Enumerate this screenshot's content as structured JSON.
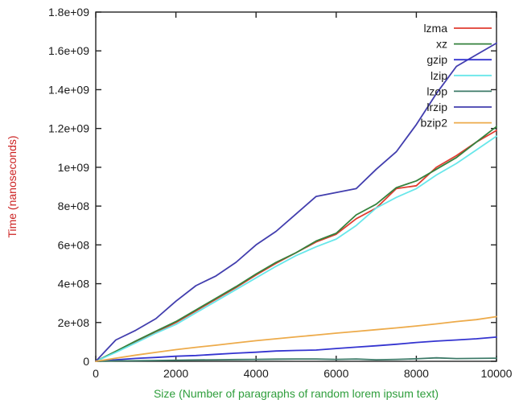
{
  "chart_data": {
    "type": "line",
    "title": "",
    "xlabel": "Size (Number of paragraphs of random lorem ipsum text)",
    "ylabel": "Time (nanoseconds)",
    "xlabel_color": "#2f9e3c",
    "ylabel_color": "#cc2222",
    "tick_text_color": "#1a1a1a",
    "border_color": "#222222",
    "background_color": "#ffffff",
    "grid": false,
    "legend_position": "inside-top-right",
    "xlim": [
      0,
      10000
    ],
    "ylim": [
      0,
      1800000000
    ],
    "xticks": [
      0,
      2000,
      4000,
      6000,
      8000,
      10000
    ],
    "xtick_labels": [
      "0",
      "2000",
      "4000",
      "6000",
      "8000",
      "10000"
    ],
    "yticks": [
      0,
      200000000.0,
      400000000.0,
      600000000.0,
      800000000.0,
      1000000000.0,
      1200000000.0,
      1400000000.0,
      1600000000.0,
      1800000000.0
    ],
    "ytick_labels": [
      "0",
      "2e+08",
      "4e+08",
      "6e+08",
      "8e+08",
      "1e+09",
      "1.2e+09",
      "1.4e+09",
      "1.6e+09",
      "1.8e+09"
    ],
    "x": [
      0,
      500,
      1000,
      1500,
      2000,
      2500,
      3000,
      3500,
      4000,
      4500,
      5000,
      5500,
      6000,
      6500,
      7000,
      7500,
      8000,
      8500,
      9000,
      9500,
      10000
    ],
    "series": [
      {
        "name": "lzma",
        "color": "#e03c30",
        "values": [
          0,
          50000000.0,
          100000000.0,
          150000000.0,
          200000000.0,
          260000000.0,
          320000000.0,
          380000000.0,
          445000000.0,
          505000000.0,
          560000000.0,
          615000000.0,
          655000000.0,
          735000000.0,
          790000000.0,
          890000000.0,
          905000000.0,
          1000000000.0,
          1060000000.0,
          1130000000.0,
          1190000000.0
        ]
      },
      {
        "name": "xz",
        "color": "#35823d",
        "values": [
          0,
          52000000.0,
          105000000.0,
          155000000.0,
          205000000.0,
          265000000.0,
          325000000.0,
          385000000.0,
          450000000.0,
          510000000.0,
          560000000.0,
          620000000.0,
          660000000.0,
          755000000.0,
          810000000.0,
          895000000.0,
          930000000.0,
          990000000.0,
          1050000000.0,
          1130000000.0,
          1210000000.0
        ]
      },
      {
        "name": "gzip",
        "color": "#3434d0",
        "values": [
          0,
          8000000.0,
          15000000.0,
          20000000.0,
          26000000.0,
          30000000.0,
          36000000.0,
          42000000.0,
          47000000.0,
          53000000.0,
          56000000.0,
          58000000.0,
          66000000.0,
          73000000.0,
          80000000.0,
          88000000.0,
          97000000.0,
          104000000.0,
          110000000.0,
          116000000.0,
          125000000.0
        ]
      },
      {
        "name": "lzip",
        "color": "#68e7ea",
        "values": [
          0,
          46000000.0,
          95000000.0,
          145000000.0,
          190000000.0,
          250000000.0,
          310000000.0,
          370000000.0,
          430000000.0,
          490000000.0,
          545000000.0,
          590000000.0,
          630000000.0,
          700000000.0,
          790000000.0,
          845000000.0,
          890000000.0,
          960000000.0,
          1020000000.0,
          1090000000.0,
          1160000000.0
        ]
      },
      {
        "name": "lzop",
        "color": "#3d7a68",
        "values": [
          0,
          2000000.0,
          3000000.0,
          4000000.0,
          6000000.0,
          7000000.0,
          8000000.0,
          9000000.0,
          10000000.0,
          11000000.0,
          12000000.0,
          12000000.0,
          10000000.0,
          12000000.0,
          8000000.0,
          10000000.0,
          13000000.0,
          18000000.0,
          14000000.0,
          15000000.0,
          16000000.0
        ]
      },
      {
        "name": "lrzip",
        "color": "#423eae",
        "values": [
          0,
          110000000.0,
          160000000.0,
          220000000.0,
          310000000.0,
          390000000.0,
          440000000.0,
          510000000.0,
          600000000.0,
          670000000.0,
          760000000.0,
          850000000.0,
          870000000.0,
          890000000.0,
          990000000.0,
          1080000000.0,
          1220000000.0,
          1380000000.0,
          1520000000.0,
          1580000000.0,
          1640000000.0
        ]
      },
      {
        "name": "bzip2",
        "color": "#edab4b",
        "values": [
          0,
          16000000.0,
          32000000.0,
          46000000.0,
          60000000.0,
          72000000.0,
          83000000.0,
          95000000.0,
          106000000.0,
          116000000.0,
          126000000.0,
          135000000.0,
          145000000.0,
          154000000.0,
          163000000.0,
          172000000.0,
          182000000.0,
          193000000.0,
          205000000.0,
          215000000.0,
          230000000.0
        ]
      }
    ]
  }
}
